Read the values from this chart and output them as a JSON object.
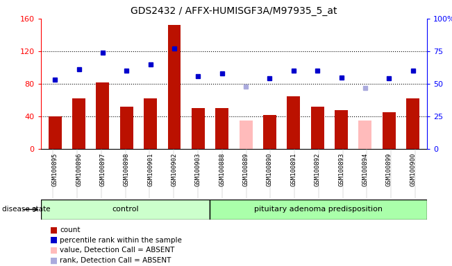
{
  "title": "GDS2432 / AFFX-HUMISGF3A/M97935_5_at",
  "samples": [
    "GSM100895",
    "GSM100896",
    "GSM100897",
    "GSM100898",
    "GSM100901",
    "GSM100902",
    "GSM100903",
    "GSM100888",
    "GSM100889",
    "GSM100890",
    "GSM100891",
    "GSM100892",
    "GSM100893",
    "GSM100894",
    "GSM100899",
    "GSM100900"
  ],
  "count_values": [
    40,
    62,
    82,
    52,
    62,
    152,
    50,
    50,
    null,
    42,
    65,
    52,
    48,
    null,
    45,
    62
  ],
  "absent_values": [
    null,
    null,
    null,
    null,
    null,
    null,
    null,
    null,
    35,
    null,
    null,
    null,
    null,
    35,
    null,
    null
  ],
  "rank_pct": [
    53,
    61,
    74,
    60,
    65,
    77,
    56,
    58,
    null,
    54,
    60,
    60,
    55,
    null,
    54,
    60
  ],
  "absent_rank_pct": [
    null,
    null,
    null,
    null,
    null,
    null,
    null,
    null,
    48,
    null,
    null,
    null,
    null,
    47,
    null,
    null
  ],
  "control_count": 7,
  "disease_count": 9,
  "ylim_left": [
    0,
    160
  ],
  "ylim_right": [
    0,
    100
  ],
  "yticks_left": [
    0,
    40,
    80,
    120,
    160
  ],
  "yticks_right": [
    0,
    25,
    50,
    75,
    100
  ],
  "ytick_labels_right": [
    "0",
    "25",
    "50",
    "75",
    "100%"
  ],
  "bar_color": "#bb1100",
  "absent_bar_color": "#ffbbbb",
  "rank_color": "#0000cc",
  "absent_rank_color": "#aaaadd",
  "control_bg": "#ccffcc",
  "disease_bg": "#aaffaa",
  "plot_bg": "#dddddd",
  "legend_items": [
    "count",
    "percentile rank within the sample",
    "value, Detection Call = ABSENT",
    "rank, Detection Call = ABSENT"
  ],
  "legend_colors": [
    "#bb1100",
    "#0000cc",
    "#ffbbbb",
    "#aaaadd"
  ]
}
